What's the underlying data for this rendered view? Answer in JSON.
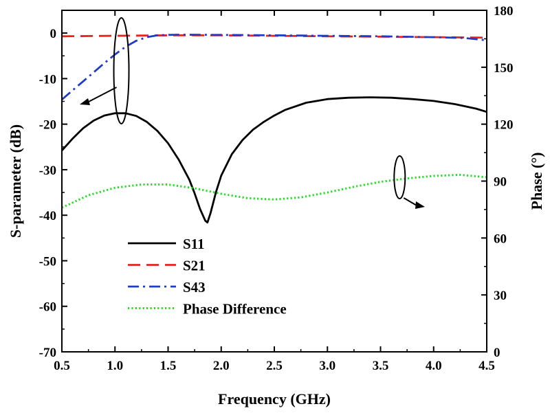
{
  "chart_data": {
    "type": "line",
    "xlabel": "Frequency (GHz)",
    "ylabel_left": "S-parameter (dB)",
    "ylabel_right": "Phase (°)",
    "xlim": [
      0.5,
      4.5
    ],
    "ylim_left": [
      -70,
      5
    ],
    "ylim_right": [
      0,
      180
    ],
    "xticks": [
      "0.5",
      "1.0",
      "1.5",
      "2.0",
      "2.5",
      "3.0",
      "3.5",
      "4.0",
      "4.5"
    ],
    "yticks_left": [
      "0",
      "-10",
      "-20",
      "-30",
      "-40",
      "-50",
      "-60",
      "-70"
    ],
    "yticks_right": [
      "0",
      "30",
      "60",
      "90",
      "120",
      "150",
      "180"
    ],
    "series": [
      {
        "name": "S11",
        "axis": "left",
        "color": "#000000",
        "style": "solid",
        "x": [
          0.5,
          0.6,
          0.7,
          0.8,
          0.9,
          1.0,
          1.1,
          1.2,
          1.3,
          1.4,
          1.5,
          1.6,
          1.7,
          1.75,
          1.8,
          1.85,
          1.87,
          1.9,
          1.95,
          2.0,
          2.1,
          2.2,
          2.3,
          2.4,
          2.5,
          2.6,
          2.8,
          3.0,
          3.2,
          3.4,
          3.6,
          3.8,
          4.0,
          4.2,
          4.4,
          4.5
        ],
        "y": [
          -25.8,
          -23.2,
          -20.9,
          -19.2,
          -18.1,
          -17.6,
          -17.6,
          -18.2,
          -19.5,
          -21.5,
          -24.2,
          -27.8,
          -32.2,
          -35.2,
          -38.6,
          -41.2,
          -41.6,
          -39.5,
          -35.0,
          -31.3,
          -26.6,
          -23.5,
          -21.2,
          -19.5,
          -18.1,
          -16.9,
          -15.3,
          -14.5,
          -14.2,
          -14.1,
          -14.2,
          -14.5,
          -14.9,
          -15.6,
          -16.6,
          -17.3
        ]
      },
      {
        "name": "S21",
        "axis": "left",
        "color": "#e8231e",
        "style": "dashed",
        "x": [
          0.5,
          1.0,
          1.5,
          2.0,
          2.5,
          3.0,
          3.5,
          4.0,
          4.5
        ],
        "y": [
          -0.7,
          -0.6,
          -0.5,
          -0.5,
          -0.6,
          -0.7,
          -0.8,
          -0.9,
          -1.0
        ]
      },
      {
        "name": "S43",
        "axis": "left",
        "color": "#1f3cc8",
        "style": "dashdot",
        "x": [
          0.5,
          0.6,
          0.7,
          0.8,
          0.9,
          1.0,
          1.1,
          1.2,
          1.3,
          1.4,
          1.5,
          1.6,
          2.0,
          2.5,
          3.0,
          3.5,
          4.0,
          4.3,
          4.5
        ],
        "y": [
          -14.6,
          -12.6,
          -10.6,
          -8.6,
          -6.6,
          -4.7,
          -3.0,
          -1.7,
          -0.9,
          -0.5,
          -0.4,
          -0.35,
          -0.4,
          -0.5,
          -0.6,
          -0.7,
          -0.9,
          -1.1,
          -1.6
        ]
      },
      {
        "name": "Phase Difference",
        "axis": "right",
        "color": "#22dd22",
        "style": "dotted",
        "x": [
          0.5,
          0.75,
          1.0,
          1.25,
          1.5,
          1.75,
          2.0,
          2.25,
          2.5,
          2.75,
          3.0,
          3.25,
          3.5,
          3.75,
          4.0,
          4.25,
          4.5
        ],
        "y": [
          76,
          82.5,
          86.5,
          88.2,
          88.2,
          86.2,
          83.3,
          81,
          80.3,
          81.4,
          84,
          87,
          89.6,
          91.4,
          92.7,
          93.3,
          92
        ]
      }
    ],
    "annotations": [
      {
        "type": "ellipse-arrow",
        "target": "S21/S43",
        "direction": "left-axis"
      },
      {
        "type": "ellipse-arrow",
        "target": "Phase Difference",
        "direction": "right-axis"
      }
    ]
  }
}
